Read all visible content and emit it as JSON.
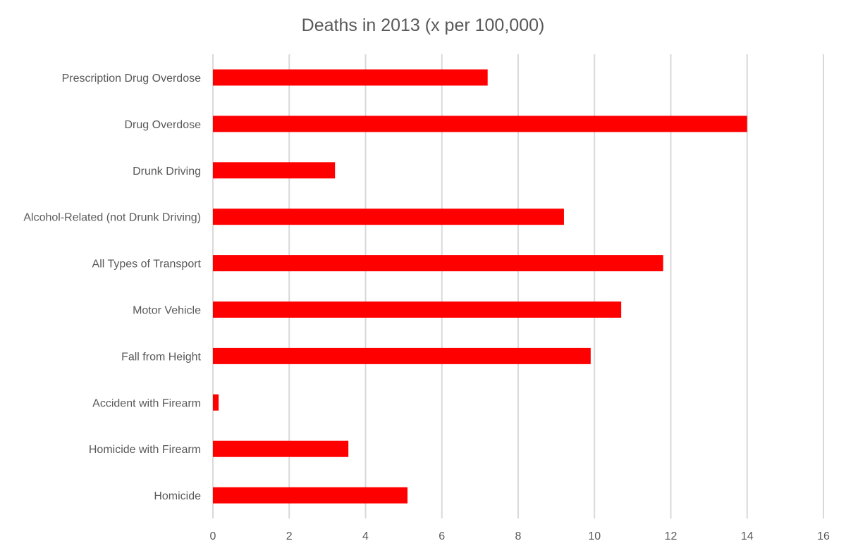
{
  "chart_data": {
    "type": "bar",
    "orientation": "horizontal",
    "title": "Deaths in 2013 (x per 100,000)",
    "xlabel": "",
    "ylabel": "",
    "categories": [
      "Prescription Drug Overdose",
      "Drug Overdose",
      "Drunk Driving",
      "Alcohol-Related (not Drunk Driving)",
      "All Types of Transport",
      "Motor Vehicle",
      "Fall from Height",
      "Accident with Firearm",
      "Homicide with Firearm",
      "Homicide"
    ],
    "values": [
      7.2,
      14.0,
      3.2,
      9.2,
      11.8,
      10.7,
      9.9,
      0.15,
      3.55,
      5.1
    ],
    "xlim": [
      0,
      16
    ],
    "xticks": [
      0,
      2,
      4,
      6,
      8,
      10,
      12,
      14,
      16
    ],
    "grid": true,
    "legend": "none",
    "bar_color": "#ff0000"
  }
}
